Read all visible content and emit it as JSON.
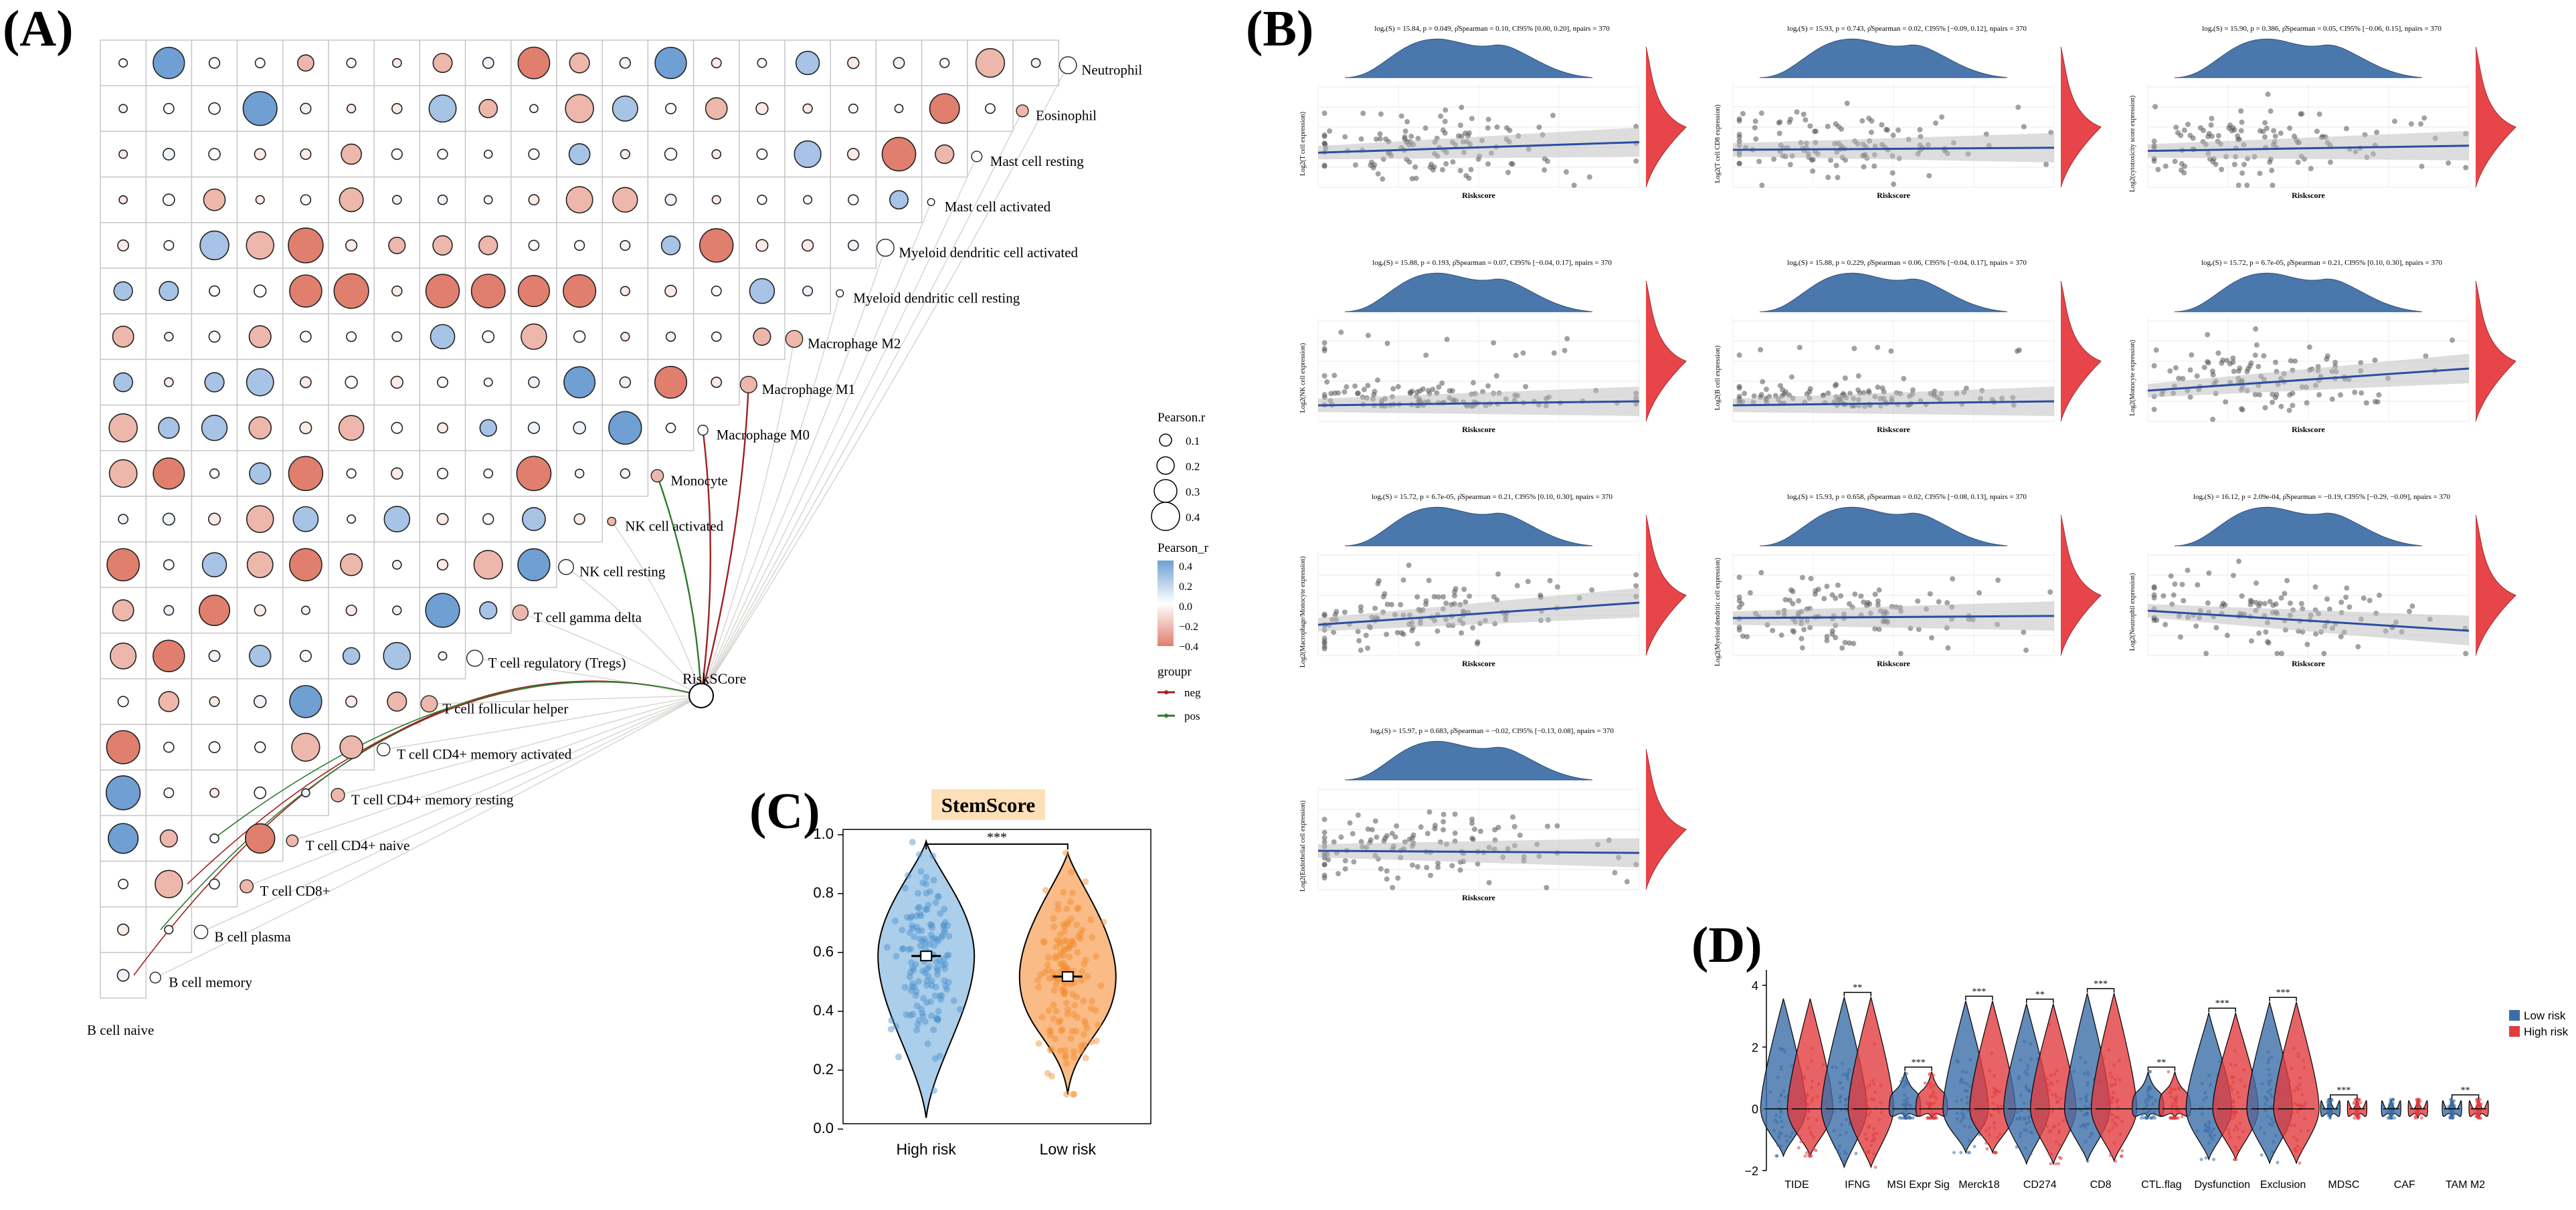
{
  "panels": {
    "A": "(A)",
    "B": "(B)",
    "C": "(C)",
    "D": "(D)"
  },
  "colors": {
    "pos_blue": "#6f9fd3",
    "neg_red": "#e07f6e",
    "density_blue": "#4a78ad",
    "density_red": "#e8454a",
    "violin_blue": "#8fbde3",
    "violin_orange": "#f8a45e",
    "grey": "#999999"
  },
  "chart_data": [
    {
      "type": "heatmap",
      "id": "A",
      "title": "",
      "rows": [
        "Neutrophil",
        "Eosinophil",
        "Mast cell resting",
        "Mast cell activated",
        "Myeloid dendritic cell activated",
        "Myeloid dendritic cell resting",
        "Macrophage M2",
        "Macrophage M1",
        "Macrophage M0",
        "Monocyte",
        "NK cell activated",
        "NK cell resting",
        "T cell gamma delta",
        "T cell regulatory (Tregs)",
        "T cell follicular helper",
        "T cell CD4+ memory activated",
        "T cell CD4+ memory resting",
        "T cell CD4+ naive",
        "T cell CD8+",
        "B cell plasma",
        "B cell memory",
        "B cell naive"
      ],
      "hub": "RiskSCore",
      "legend": {
        "size_title": "Pearson.r",
        "size_values": [
          "0.1",
          "0.2",
          "0.3",
          "0.4"
        ],
        "color_title": "Pearson_r",
        "color_ticks": [
          "0.4",
          "0.2",
          "0.0",
          "−0.2",
          "−0.4"
        ],
        "group_title": "groupr",
        "group_items": [
          "neg",
          "pos"
        ]
      }
    },
    {
      "type": "scatter",
      "id": "B",
      "x_label": "Riskscore",
      "plots": [
        {
          "stat": "logₑ(S) = 15.84, p = 0.049, ρ̂Spearman = 0.10, CI95% [0.00, 0.20], npairs = 370",
          "y_label": "Log2(T cell expression)",
          "trend": "up",
          "r": 0.1
        },
        {
          "stat": "logₑ(S) = 15.93, p = 0.743, ρ̂Spearman = 0.02, CI95% [−0.09, 0.12], npairs = 370",
          "y_label": "Log2(T cell CD8 expression)",
          "trend": "up",
          "r": 0.02
        },
        {
          "stat": "logₑ(S) = 15.90, p = 0.386, ρ̂Spearman = 0.05, CI95% [−0.06, 0.15], npairs = 370",
          "y_label": "Log2(cytotoxicity score expression)",
          "trend": "up",
          "r": 0.05
        },
        {
          "stat": "logₑ(S) = 15.88, p = 0.193, ρ̂Spearman = 0.07, CI95% [−0.04, 0.17], npairs = 370",
          "y_label": "Log2(NK cell expression)",
          "trend": "up",
          "r": 0.07
        },
        {
          "stat": "logₑ(S) = 15.88, p = 0.229, ρ̂Spearman = 0.06, CI95% [−0.04, 0.17], npairs = 370",
          "y_label": "Log2(B cell expression)",
          "trend": "up",
          "r": 0.06
        },
        {
          "stat": "logₑ(S) = 15.72, p = 6.7e-05, ρ̂Spearman = 0.21, CI95% [0.10, 0.30], npairs = 370",
          "y_label": "Log2(Monocyte expression)",
          "trend": "up",
          "r": 0.21
        },
        {
          "stat": "logₑ(S) = 15.72, p = 6.7e-05, ρ̂Spearman = 0.21, CI95% [0.10, 0.30], npairs = 370",
          "y_label": "Log2(Macrophage/Monocyte expression)",
          "trend": "up",
          "r": 0.21
        },
        {
          "stat": "logₑ(S) = 15.93, p = 0.658, ρ̂Spearman = 0.02, CI95% [−0.08, 0.13], npairs = 370",
          "y_label": "Log2(Myeloid dendritic cell expression)",
          "trend": "up",
          "r": 0.02
        },
        {
          "stat": "logₑ(S) = 16.12, p = 2.09e-04, ρ̂Spearman = −0.19, CI95% [−0.29, −0.09], npairs = 370",
          "y_label": "Log2(Neutrophil expression)",
          "trend": "down",
          "r": -0.19
        },
        {
          "stat": "logₑ(S) = 15.97, p = 0.683, ρ̂Spearman = −0.02, CI95% [−0.13, 0.08], npairs = 370",
          "y_label": "Log2(Endothelial cell expression)",
          "trend": "flat",
          "r": -0.02
        }
      ]
    },
    {
      "type": "violin",
      "id": "C",
      "title": "StemScore",
      "categories": [
        "High risk",
        "Low risk"
      ],
      "medians": [
        0.57,
        0.5
      ],
      "ranges": [
        [
          0.02,
          0.96
        ],
        [
          0.1,
          0.92
        ]
      ],
      "yticks": [
        "0.0",
        "0.2",
        "0.4",
        "0.6",
        "0.8",
        "1.0"
      ],
      "ylim": [
        0.0,
        1.0
      ],
      "significance": "***"
    },
    {
      "type": "violin",
      "id": "D",
      "categories": [
        "TIDE",
        "IFNG",
        "MSI Expr Sig",
        "Merck18",
        "CD274",
        "CD8",
        "CTL.flag",
        "Dysfunction",
        "Exclusion",
        "MDSC",
        "CAF",
        "TAM M2"
      ],
      "significance": [
        "",
        "**",
        "***",
        "***",
        "**",
        "***",
        "**",
        "***",
        "***",
        "***",
        "",
        "**"
      ],
      "series": [
        {
          "name": "Low risk"
        },
        {
          "name": "High risk"
        }
      ],
      "yticks": [
        "−2",
        "0",
        "2",
        "4"
      ],
      "ylim": [
        -2,
        4.5
      ]
    }
  ]
}
